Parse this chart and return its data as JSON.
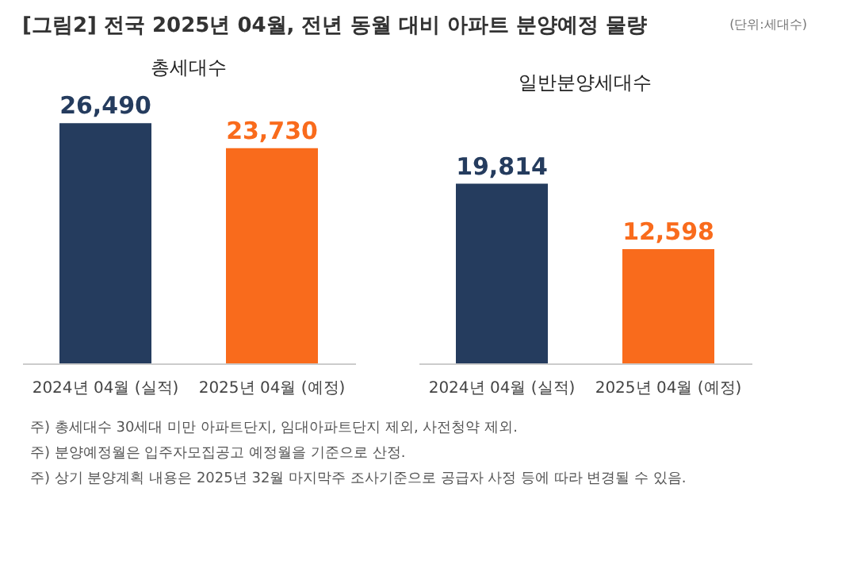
{
  "chart_data": [
    {
      "type": "bar",
      "title": "총세대수",
      "categories": [
        "2024년 04월 (실적)",
        "2025년 04월 (예정)"
      ],
      "values": [
        26490,
        23730
      ],
      "colors": [
        "#253c5e",
        "#f96b1c"
      ],
      "value_labels": [
        "26,490",
        "23,730"
      ],
      "annotations": [
        "[그림2] 전국 2025년 04월, 전년 동월 대비 아파트 분양예정 물량",
        "(단위:세대수)",
        "주) 총세대수 30세대 미만 아파트단지, 임대아파트단지 제외, 사전청약 제외.",
        "주) 분양예정월은 입주자모집공고 예정월을 기준으로 산정.",
        "주) 상기 분양계획 내용은 2025년 32월 마지막주 조사기준으로 공급자 사정 등에 따라 변경될 수 있음."
      ]
    },
    {
      "type": "bar",
      "title": "일반분양세대수",
      "categories": [
        "2024년 04월 (실적)",
        "2025년 04월 (예정)"
      ],
      "values": [
        19814,
        12598
      ],
      "colors": [
        "#253c5e",
        "#f96b1c"
      ],
      "value_labels": [
        "19,814",
        "12,598"
      ]
    }
  ]
}
